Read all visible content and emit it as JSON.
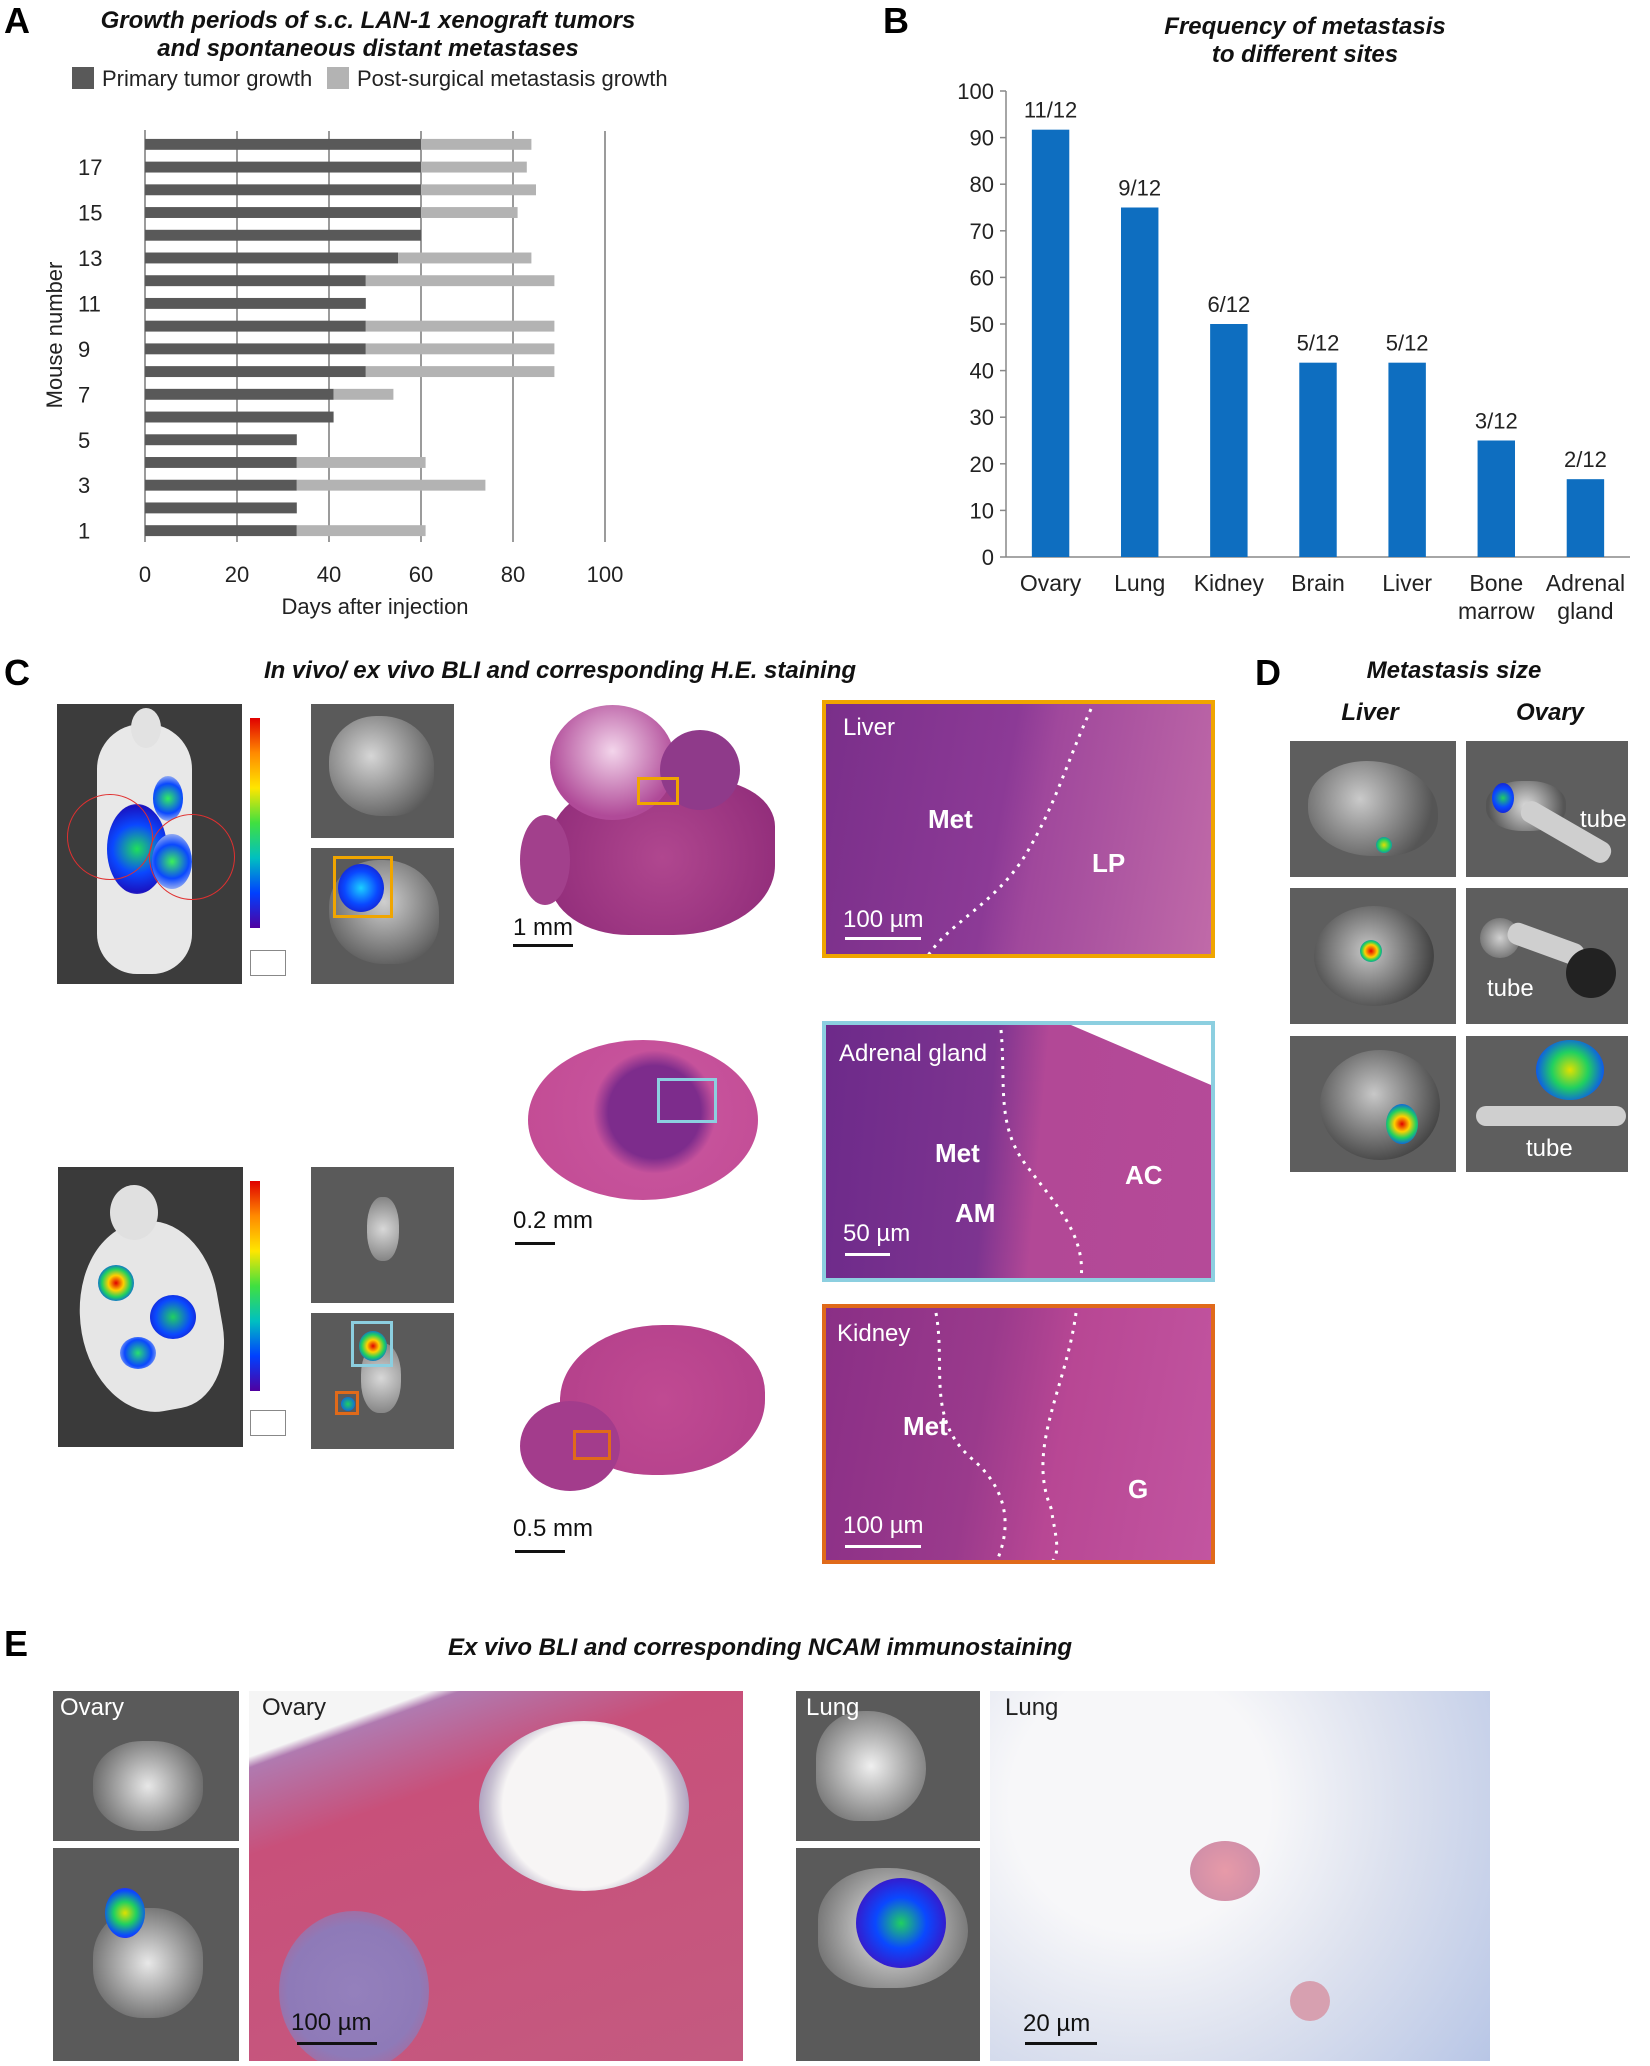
{
  "panels": {
    "A": {
      "letter": "A"
    },
    "B": {
      "letter": "B"
    },
    "C": {
      "letter": "C",
      "title": "In vivo/ ex vivo BLI and corresponding H.E. staining"
    },
    "D": {
      "letter": "D",
      "title": "Metastasis size",
      "col1": "Liver",
      "col2": "Ovary"
    },
    "E": {
      "letter": "E",
      "title": "Ex vivo BLI and corresponding NCAM immunostaining"
    }
  },
  "panelC": {
    "row1": {
      "scale": "1 mm",
      "tissue": "Liver",
      "met": "Met",
      "other": "LP",
      "micro": "100 µm",
      "frame_color": "#f0a500"
    },
    "row2": {
      "scale": "0.2 mm",
      "tissue": "Adrenal gland",
      "met": "Met",
      "am": "AM",
      "ac": "AC",
      "micro": "50 µm",
      "frame_color": "#8ccfe0"
    },
    "row3": {
      "scale": "0.5 mm",
      "tissue": "Kidney",
      "met": "Met",
      "other": "G",
      "micro": "100 µm",
      "frame_color": "#e06a1a"
    }
  },
  "panelD": {
    "tube1": "tube",
    "tube2": "tube",
    "tube3": "tube"
  },
  "panelE": {
    "ovary_label1": "Ovary",
    "ovary_label2": "Ovary",
    "ovary_scale": "100 µm",
    "lung_label1": "Lung",
    "lung_label2": "Lung",
    "lung_scale": "20 µm"
  },
  "chart_data": [
    {
      "type": "bar",
      "orientation": "horizontal-stacked",
      "title": "Growth periods of s.c. LAN-1 xenograft tumors and spontaneous distant metastases",
      "xlabel": "Days after injection",
      "ylabel": "Mouse number",
      "xlim": [
        0,
        100
      ],
      "xticks": [
        "0",
        "20",
        "40",
        "60",
        "80",
        "100"
      ],
      "yticks": [
        "1",
        "3",
        "5",
        "7",
        "9",
        "11",
        "13",
        "15",
        "17"
      ],
      "legend": "top",
      "grid": true,
      "series": [
        {
          "name": "Primary tumor growth",
          "color": "#595959",
          "values": [
            33,
            33,
            33,
            33,
            33,
            41,
            41,
            48,
            48,
            48,
            48,
            48,
            55,
            60,
            60,
            60,
            60,
            60
          ]
        },
        {
          "name": "Post-surgical metastasis growth",
          "color": "#b3b3b3",
          "values": [
            28,
            0,
            41,
            28,
            0,
            0,
            13,
            41,
            41,
            41,
            0,
            41,
            29,
            0,
            21,
            25,
            23,
            24
          ]
        }
      ],
      "categories": [
        "1",
        "2",
        "3",
        "4",
        "5",
        "6",
        "7",
        "8",
        "9",
        "10",
        "11",
        "12",
        "13",
        "14",
        "15",
        "16",
        "17",
        "18"
      ]
    },
    {
      "type": "bar",
      "title": "Frequency of metastasis to different sites",
      "categories": [
        "Ovary",
        "Lung",
        "Kidney",
        "Brain",
        "Liver",
        "Bone marrow",
        "Adrenal gland"
      ],
      "values": [
        91.7,
        75,
        50,
        41.7,
        41.7,
        25,
        16.7
      ],
      "data_labels": [
        "11/12",
        "9/12",
        "6/12",
        "5/12",
        "5/12",
        "3/12",
        "2/12"
      ],
      "ylim": [
        0,
        100
      ],
      "yticks": [
        "0",
        "10",
        "20",
        "30",
        "40",
        "50",
        "60",
        "70",
        "80",
        "90",
        "100"
      ],
      "color": "#0e6ec0",
      "xlabel": "",
      "ylabel": ""
    }
  ]
}
